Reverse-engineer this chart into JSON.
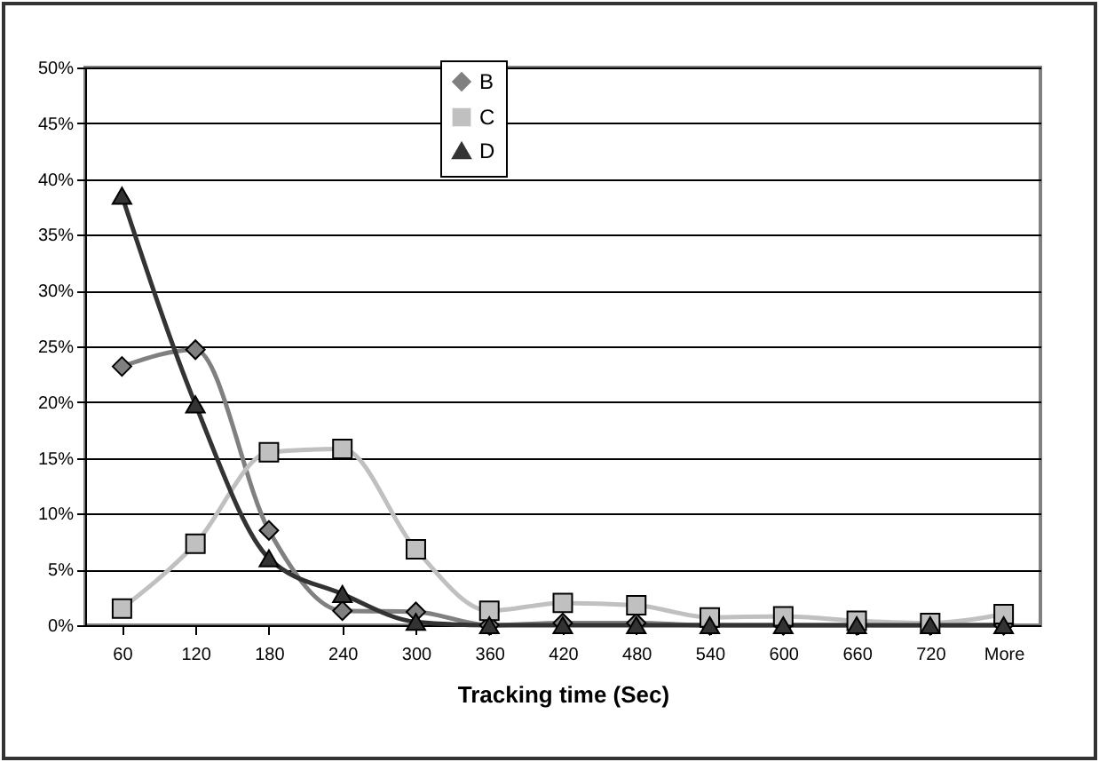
{
  "chart_data": {
    "type": "line",
    "xlabel": "Tracking time (Sec)",
    "categories": [
      "60",
      "120",
      "180",
      "240",
      "300",
      "360",
      "420",
      "480",
      "540",
      "600",
      "660",
      "720",
      "More"
    ],
    "series": [
      {
        "name": "B",
        "color": "#808080",
        "marker": "diamond",
        "values": [
          23.2,
          24.7,
          8.5,
          1.3,
          1.2,
          0,
          0.2,
          0.2,
          0,
          0,
          0,
          0,
          0
        ]
      },
      {
        "name": "C",
        "color": "#c0c0c0",
        "marker": "square",
        "values": [
          1.5,
          7.3,
          15.5,
          15.8,
          6.8,
          1.3,
          2.0,
          1.8,
          0.7,
          0.8,
          0.4,
          0.2,
          1.0
        ]
      },
      {
        "name": "D",
        "color": "#333333",
        "marker": "triangle",
        "values": [
          38.5,
          19.8,
          6.0,
          2.8,
          0.3,
          0,
          0,
          0,
          0,
          0,
          0,
          0,
          0
        ]
      }
    ],
    "ylim": [
      0,
      50
    ],
    "yticks": [
      {
        "value": 0,
        "label": "0%"
      },
      {
        "value": 5,
        "label": "5%"
      },
      {
        "value": 10,
        "label": "10%"
      },
      {
        "value": 15,
        "label": "15%"
      },
      {
        "value": 20,
        "label": "20%"
      },
      {
        "value": 25,
        "label": "25%"
      },
      {
        "value": 30,
        "label": "30%"
      },
      {
        "value": 35,
        "label": "35%"
      },
      {
        "value": 40,
        "label": "40%"
      },
      {
        "value": 45,
        "label": "45%"
      },
      {
        "value": 50,
        "label": "50%"
      }
    ],
    "grid": "y",
    "legend": "top",
    "line_style": "solid"
  }
}
